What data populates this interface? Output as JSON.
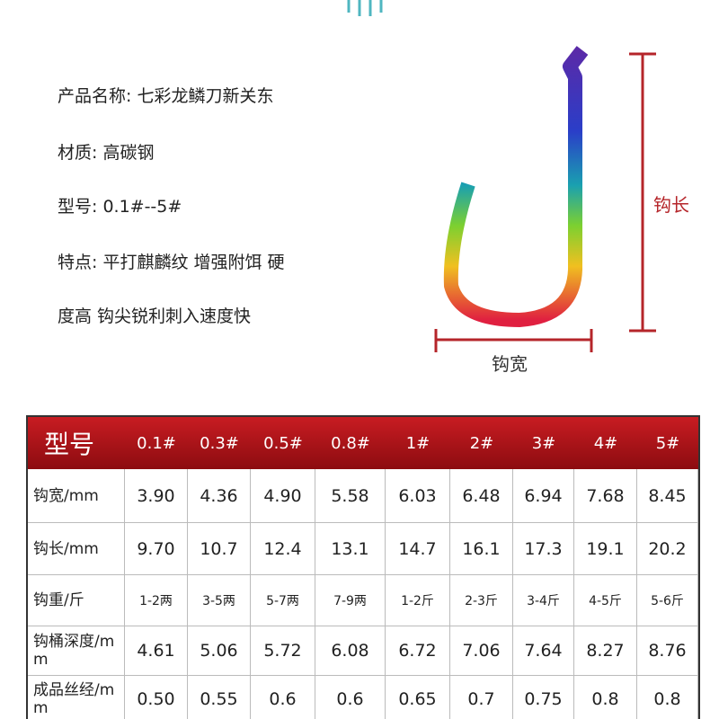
{
  "spec_lines": [
    "产品名称: 七彩龙鳞刀新关东",
    "材质: 高碳钢",
    "型号: 0.1#--5#",
    "特点: 平打麒麟纹 增强附饵 硬",
    "度高 钩尖锐利刺入速度快"
  ],
  "dimensions": {
    "length": "钩长",
    "width": "钩宽"
  },
  "table": {
    "header": [
      "型号",
      "0.1#",
      "0.3#",
      "0.5#",
      "0.8#",
      "1#",
      "2#",
      "3#",
      "4#",
      "5#"
    ],
    "rows": [
      [
        "钩宽/mm",
        "3.90",
        "4.36",
        "4.90",
        "5.58",
        "6.03",
        "6.48",
        "6.94",
        "7.68",
        "8.45"
      ],
      [
        "钩长/mm",
        "9.70",
        "10.7",
        "12.4",
        "13.1",
        "14.7",
        "16.1",
        "17.3",
        "19.1",
        "20.2"
      ],
      [
        "钩重/斤",
        "1-2两",
        "3-5两",
        "5-7两",
        "7-9两",
        "1-2斤",
        "2-3斤",
        "3-4斤",
        "4-5斤",
        "5-6斤"
      ],
      [
        "钩桶深度/mm",
        "4.61",
        "5.06",
        "5.72",
        "6.08",
        "6.72",
        "7.06",
        "7.64",
        "8.27",
        "8.76"
      ],
      [
        "成品丝经/mm",
        "0.50",
        "0.55",
        "0.6",
        "0.6",
        "0.65",
        "0.7",
        "0.75",
        "0.8",
        "0.8"
      ]
    ]
  }
}
